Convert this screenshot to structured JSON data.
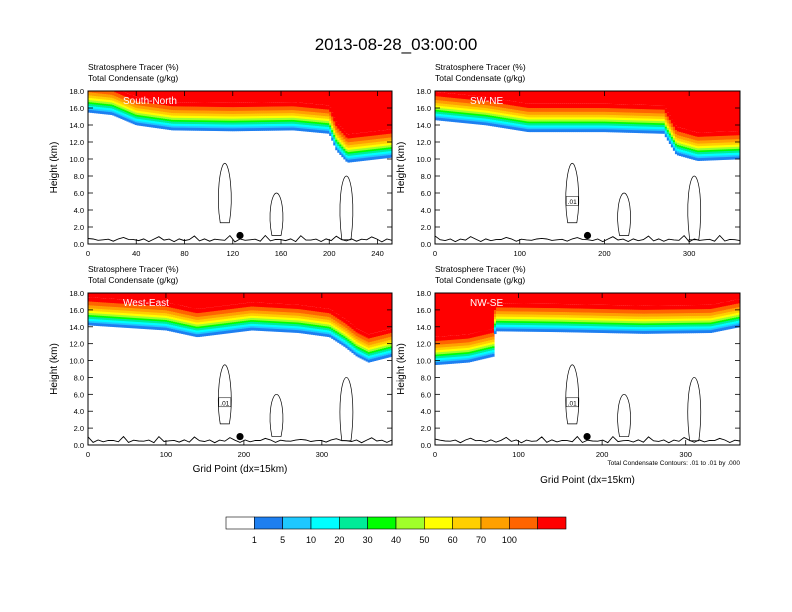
{
  "title": "2013-08-28_03:00:00",
  "colors": [
    "#ffffff",
    "#1e7ff0",
    "#1ec8ff",
    "#00ffff",
    "#00ec98",
    "#00ff00",
    "#a0ff2a",
    "#ffff00",
    "#ffcf00",
    "#ffa000",
    "#ff6400",
    "#ff0000"
  ],
  "chart_data": [
    {
      "type": "heatmap",
      "subtitle1": "Stratosphere Tracer   (%)",
      "subtitle2": "Total Condensate   (g/kg)",
      "panel_label": "South-North",
      "ylabel": "Height (km)",
      "xlabel": "",
      "xlim": [
        0,
        252
      ],
      "ylim": [
        0,
        18
      ],
      "xticks": [
        "0",
        "40",
        "80",
        "120",
        "160",
        "200",
        "240"
      ],
      "xtick_values": [
        0,
        40,
        80,
        120,
        160,
        200,
        240
      ],
      "yticks": [
        "0.0",
        "2.0",
        "4.0",
        "6.0",
        "8.0",
        "10.0",
        "12.0",
        "14.0",
        "16.0",
        "18.0"
      ],
      "tropopause_km": [
        [
          0,
          15.5
        ],
        [
          20,
          15.2
        ],
        [
          40,
          14.0
        ],
        [
          70,
          13.4
        ],
        [
          120,
          13.3
        ],
        [
          170,
          13.4
        ],
        [
          200,
          13.0
        ],
        [
          206,
          11.0
        ],
        [
          215,
          9.6
        ],
        [
          252,
          10.2
        ]
      ],
      "contour_label": "",
      "marker": {
        "x": 126,
        "y": 1.0
      }
    },
    {
      "type": "heatmap",
      "subtitle1": "Stratosphere Tracer   (%)",
      "subtitle2": "Total Condensate   (g/kg)",
      "panel_label": "SW-NE",
      "ylabel": "Height (km)",
      "xlabel": "",
      "xlim": [
        0,
        360
      ],
      "ylim": [
        0,
        18
      ],
      "xticks": [
        "0",
        "100",
        "200",
        "300"
      ],
      "xtick_values": [
        0,
        100,
        200,
        300
      ],
      "yticks": [
        "0.0",
        "2.0",
        "4.0",
        "6.0",
        "8.0",
        "10.0",
        "12.0",
        "14.0",
        "16.0",
        "18.0"
      ],
      "tropopause_km": [
        [
          0,
          14.6
        ],
        [
          60,
          14.0
        ],
        [
          110,
          13.2
        ],
        [
          200,
          13.2
        ],
        [
          270,
          13.0
        ],
        [
          285,
          10.5
        ],
        [
          310,
          9.8
        ],
        [
          360,
          10.0
        ]
      ],
      "contour_label": ".01",
      "marker": {
        "x": 180,
        "y": 1.0
      }
    },
    {
      "type": "heatmap",
      "subtitle1": "Stratosphere Tracer   (%)",
      "subtitle2": "Total Condensate   (g/kg)",
      "panel_label": "West-East",
      "ylabel": "Height (km)",
      "xlabel": "Grid Point (dx=15km)",
      "xlim": [
        0,
        390
      ],
      "ylim": [
        0,
        18
      ],
      "xticks": [
        "0",
        "100",
        "200",
        "300"
      ],
      "xtick_values": [
        0,
        100,
        200,
        300
      ],
      "yticks": [
        "0.0",
        "2.0",
        "4.0",
        "6.0",
        "8.0",
        "10.0",
        "12.0",
        "14.0",
        "16.0",
        "18.0"
      ],
      "tropopause_km": [
        [
          0,
          14.2
        ],
        [
          100,
          13.6
        ],
        [
          140,
          12.8
        ],
        [
          210,
          13.6
        ],
        [
          270,
          13.3
        ],
        [
          310,
          12.8
        ],
        [
          330,
          11.6
        ],
        [
          345,
          10.5
        ],
        [
          360,
          9.8
        ],
        [
          390,
          10.5
        ]
      ],
      "contour_label": ".01",
      "marker": {
        "x": 195,
        "y": 1.0
      }
    },
    {
      "type": "heatmap",
      "subtitle1": "Stratosphere Tracer   (%)",
      "subtitle2": "Total Condensate   (g/kg)",
      "panel_label": "NW-SE",
      "ylabel": "Height (km)",
      "xlabel": "Grid Point (dx=15km)",
      "xlim": [
        0,
        365
      ],
      "ylim": [
        0,
        18
      ],
      "xticks": [
        "0",
        "100",
        "200",
        "300"
      ],
      "xtick_values": [
        0,
        100,
        200,
        300
      ],
      "yticks": [
        "0.0",
        "2.0",
        "4.0",
        "6.0",
        "8.0",
        "10.0",
        "12.0",
        "14.0",
        "16.0",
        "18.0"
      ],
      "tropopause_km": [
        [
          0,
          9.5
        ],
        [
          40,
          9.8
        ],
        [
          70,
          10.5
        ],
        [
          72,
          13.5
        ],
        [
          150,
          13.4
        ],
        [
          250,
          13.2
        ],
        [
          330,
          13.3
        ],
        [
          365,
          14.0
        ]
      ],
      "contour_label": ".01",
      "marker": {
        "x": 182,
        "y": 1.0
      },
      "footnote": "Total Condensate Contours: .01 to .01 by .000"
    }
  ],
  "colorbar": {
    "levels": [
      "1",
      "5",
      "10",
      "20",
      "30",
      "40",
      "50",
      "60",
      "70",
      "100"
    ]
  }
}
